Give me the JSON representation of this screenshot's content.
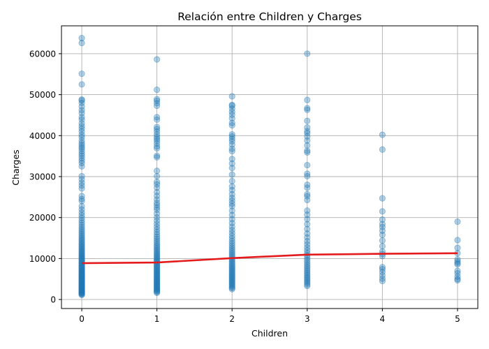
{
  "chart_data": {
    "type": "scatter",
    "title": "Relación entre Children y Charges",
    "xlabel": "Children",
    "ylabel": "Charges",
    "xlim": [
      -0.27,
      5.27
    ],
    "ylim": [
      -2200,
      66800
    ],
    "xticks": [
      0,
      1,
      2,
      3,
      4,
      5
    ],
    "yticks": [
      0,
      10000,
      20000,
      30000,
      40000,
      50000,
      60000
    ],
    "grid": true,
    "colors": {
      "points": "#1f77b4",
      "trend": "#e41a1c"
    },
    "point_opacity": 0.35,
    "series": [
      {
        "values_by_x": [
          {
            "x": 0,
            "y": [
              1121,
              1242,
              1391,
              1526,
              1633,
              1705,
              1880,
              1986,
              2103,
              2198,
              2331,
              2457,
              2585,
              2709,
              2855,
              2994,
              3126,
              3260,
              3393,
              3532,
              3658,
              3793,
              3945,
              4089,
              4229,
              4377,
              4526,
              4673,
              4822,
              4974,
              5124,
              5268,
              5432,
              5594,
              5757,
              5905,
              6081,
              6246,
              6402,
              6578,
              6749,
              6920,
              7094,
              7269,
              7450,
              7626,
              7814,
              8006,
              8198,
              8393,
              8598,
              8805,
              9011,
              9222,
              9449,
              9665,
              9893,
              10124,
              10357,
              10602,
              10836,
              11090,
              11338,
              11602,
              11881,
              12158,
              12446,
              12739,
              13047,
              13364,
              13681,
              14012,
              14369,
              14711,
              15090,
              15485,
              15870,
              16297,
              16738,
              17183,
              17673,
              18188,
              18743,
              19303,
              19929,
              20555,
              21233,
              21980,
              22781,
              24027,
              24540,
              25250,
              27100,
              27800,
              28500,
              29300,
              30100,
              32500,
              33300,
              33900,
              34500,
              35100,
              35600,
              36200,
              36800,
              37200,
              37700,
              38200,
              38800,
              39600,
              40200,
              41000,
              41700,
              42300,
              43000,
              43900,
              44500,
              45500,
              46200,
              47100,
              48000,
              48600,
              48800,
              52500,
              55100,
              62600,
              63800
            ]
          },
          {
            "x": 1,
            "y": [
              1625,
              1856,
              2036,
              2250,
              2456,
              2638,
              2853,
              3068,
              3268,
              3491,
              3702,
              3903,
              4103,
              4338,
              4567,
              4778,
              5001,
              5237,
              5472,
              5709,
              5944,
              6195,
              6427,
              6666,
              6904,
              7158,
              7419,
              7673,
              7934,
              8204,
              8460,
              8760,
              9040,
              9320,
              9620,
              9920,
              10230,
              10540,
              10855,
              11183,
              11520,
              11878,
              12250,
              12630,
              13020,
              13440,
              13880,
              14350,
              14830,
              15330,
              15880,
              16460,
              17080,
              17740,
              18460,
              19220,
              20050,
              20940,
              21880,
              22440,
              23050,
              23620,
              24400,
              25300,
              26200,
              27300,
              28100,
              28700,
              30100,
              31400,
              34700,
              35100,
              36900,
              37400,
              38100,
              38700,
              39200,
              39700,
              40300,
              41000,
              41600,
              42100,
              43900,
              44500,
              47300,
              47900,
              48500,
              48900,
              51200,
              58600
            ]
          },
          {
            "x": 2,
            "y": [
              2520,
              2800,
              3080,
              3350,
              3630,
              3910,
              4180,
              4460,
              4740,
              5020,
              5310,
              5590,
              5880,
              6170,
              6460,
              6750,
              7060,
              7360,
              7670,
              7990,
              8310,
              8640,
              8980,
              9330,
              9690,
              10060,
              10450,
              10850,
              11270,
              11710,
              12170,
              12650,
              13160,
              13700,
              14270,
              14880,
              15520,
              16220,
              16960,
              17760,
              18640,
              19600,
              20620,
              21680,
              22780,
              23400,
              24100,
              24800,
              25700,
              26700,
              27600,
              28900,
              30500,
              32100,
              33200,
              34300,
              36200,
              36800,
              37800,
              38600,
              39200,
              39800,
              40300,
              42500,
              43100,
              44200,
              45100,
              45800,
              46600,
              47300,
              47500,
              49600
            ]
          },
          {
            "x": 3,
            "y": [
              3300,
              3680,
              4060,
              4430,
              4820,
              5210,
              5600,
              6000,
              6410,
              6830,
              7260,
              7700,
              8160,
              8630,
              9120,
              9640,
              10180,
              10750,
              11350,
              12000,
              12700,
              13450,
              14250,
              15150,
              16100,
              17200,
              18400,
              19600,
              20700,
              21700,
              24300,
              25200,
              25700,
              27300,
              28000,
              30100,
              30700,
              32800,
              35900,
              36300,
              37600,
              38800,
              39800,
              40600,
              41100,
              42000,
              43600,
              46300,
              46700,
              48700,
              60000
            ]
          },
          {
            "x": 4,
            "y": [
              4500,
              5100,
              5900,
              6700,
              7400,
              7900,
              10600,
              11100,
              11700,
              13000,
              14400,
              15800,
              16800,
              17700,
              18400,
              19500,
              21500,
              24700,
              36600,
              40200
            ]
          },
          {
            "x": 5,
            "y": [
              4700,
              5000,
              5600,
              6400,
              7000,
              8600,
              8900,
              9300,
              9800,
              11300,
              12600,
              14500,
              19000
            ]
          }
        ]
      },
      {
        "type": "line",
        "x": [
          0,
          1,
          2,
          3,
          4,
          5
        ],
        "y": [
          8870,
          9030,
          10100,
          10950,
          11150,
          11300
        ]
      }
    ]
  }
}
